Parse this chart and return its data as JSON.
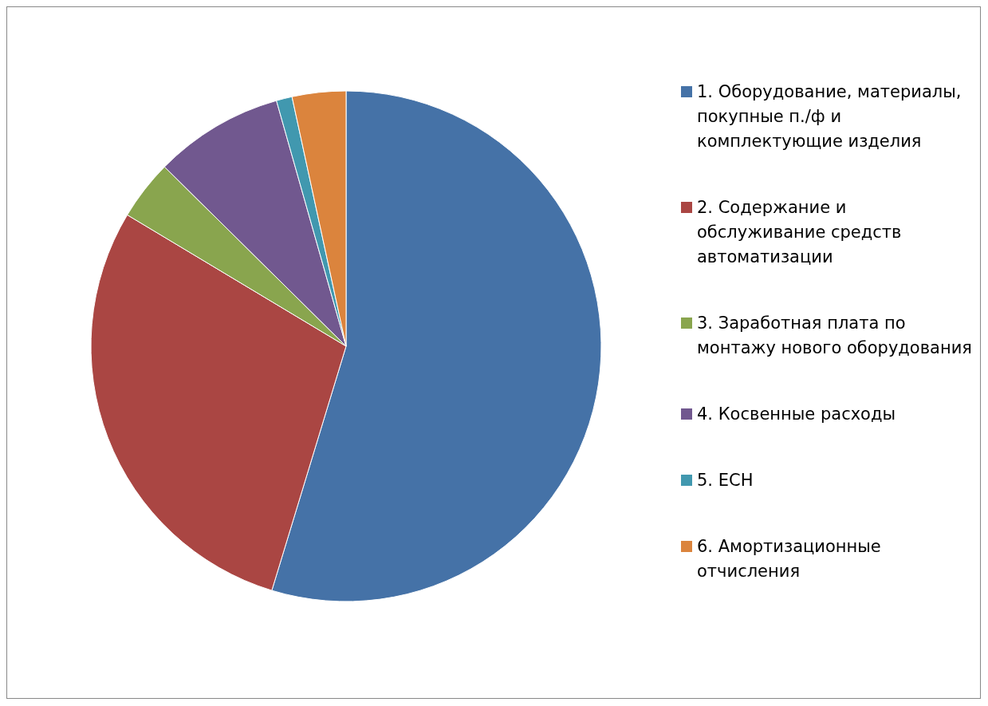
{
  "chart_data": {
    "type": "pie",
    "categories": [
      "1. Оборудование, материалы, покупные п./ф и комплектующие изделия",
      "2. Содержание и обслуживание средств автоматизации",
      "3. Заработная плата по монтажу нового оборудования",
      "4. Косвенные расходы",
      "5. ЕСН",
      "6. Амортизационные отчисления"
    ],
    "values": [
      54.7,
      28.9,
      3.8,
      8.2,
      1.0,
      3.4
    ],
    "colors": [
      "#4572a7",
      "#aa4643",
      "#89a54e",
      "#71588f",
      "#4198af",
      "#db843d"
    ],
    "legend": "right"
  }
}
